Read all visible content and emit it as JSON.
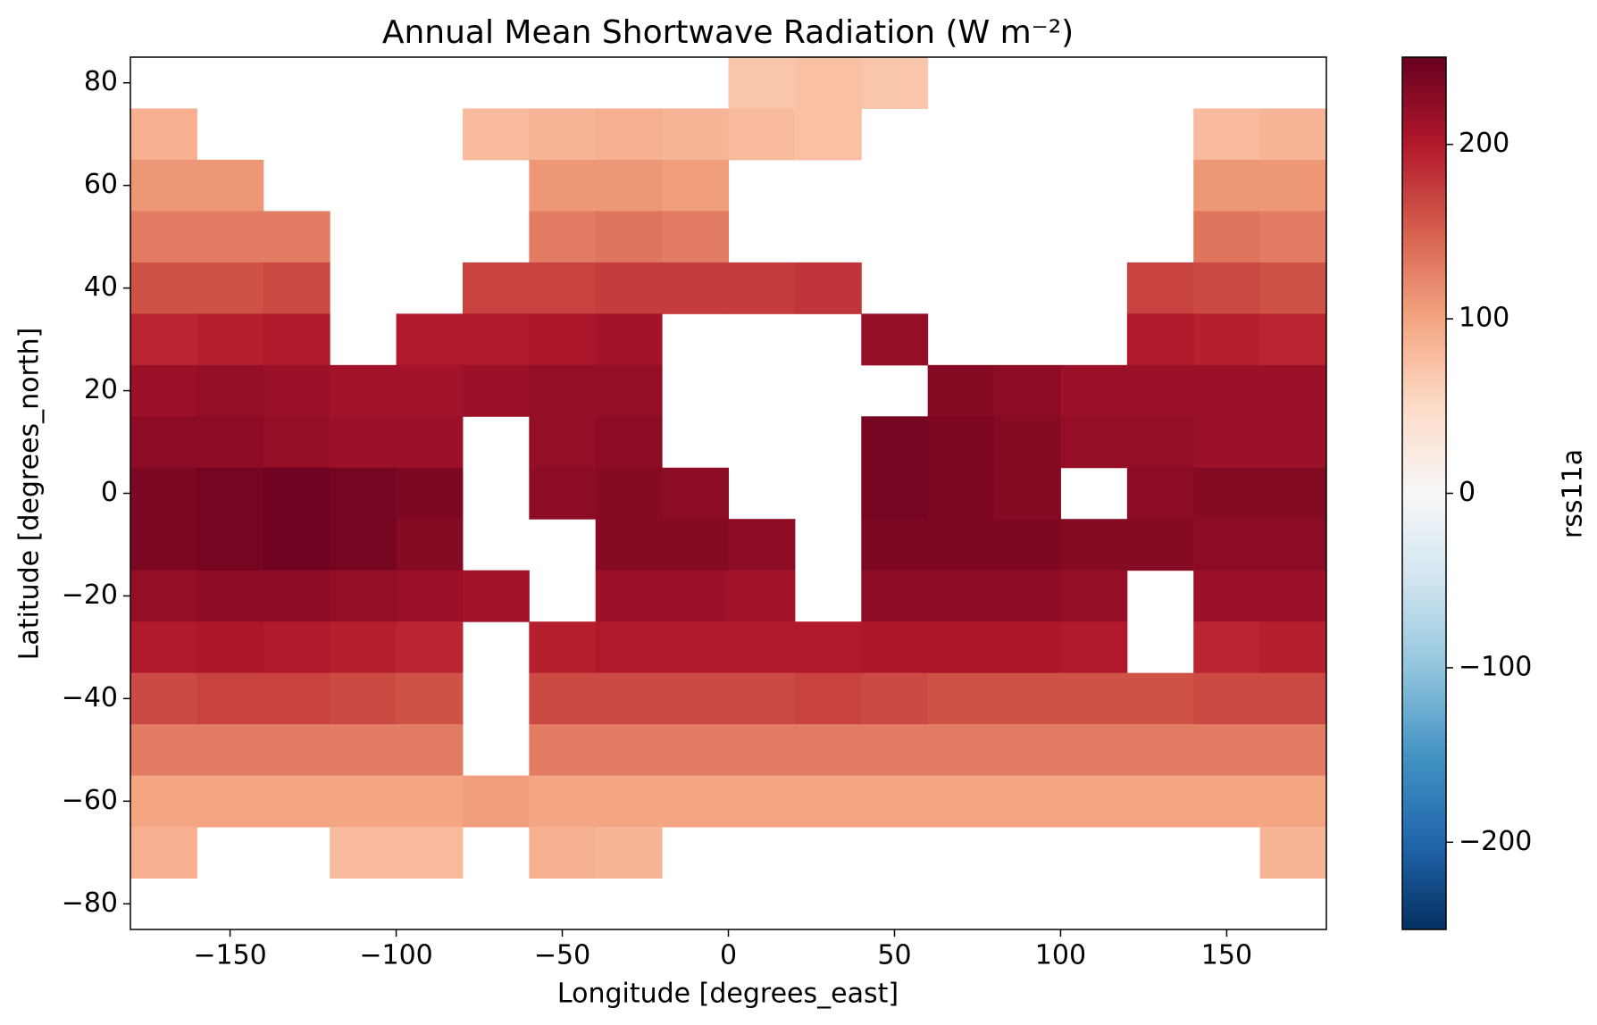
{
  "chart_data": {
    "type": "heatmap",
    "title": "Annual Mean Shortwave Radiation (W m⁻²)",
    "xlabel": "Longitude [degrees_east]",
    "ylabel": "Latitude [degrees_north]",
    "colorbar_label": "rss11a",
    "colormap": "RdBu_r",
    "x": [
      -170,
      -150,
      -130,
      -110,
      -90,
      -70,
      -50,
      -30,
      -10,
      10,
      30,
      50,
      70,
      90,
      110,
      130,
      150,
      170
    ],
    "y": [
      80,
      70,
      60,
      50,
      40,
      30,
      20,
      10,
      0,
      -10,
      -20,
      -30,
      -40,
      -50,
      -60,
      -70
    ],
    "values": [
      [
        null,
        null,
        null,
        null,
        null,
        null,
        null,
        null,
        null,
        70,
        75,
        70,
        null,
        null,
        null,
        null,
        null,
        null
      ],
      [
        90,
        null,
        null,
        null,
        null,
        80,
        85,
        90,
        85,
        80,
        75,
        null,
        null,
        null,
        null,
        null,
        80,
        85
      ],
      [
        110,
        110,
        null,
        null,
        null,
        null,
        110,
        110,
        105,
        null,
        null,
        null,
        null,
        null,
        null,
        null,
        110,
        110
      ],
      [
        130,
        130,
        130,
        null,
        null,
        null,
        130,
        135,
        130,
        null,
        null,
        null,
        null,
        null,
        null,
        null,
        135,
        130
      ],
      [
        160,
        160,
        165,
        null,
        null,
        170,
        170,
        175,
        175,
        175,
        180,
        null,
        null,
        null,
        null,
        170,
        165,
        160
      ],
      [
        190,
        195,
        200,
        null,
        200,
        200,
        205,
        210,
        null,
        null,
        null,
        220,
        null,
        null,
        null,
        200,
        195,
        190
      ],
      [
        215,
        220,
        215,
        210,
        210,
        215,
        220,
        220,
        null,
        null,
        null,
        null,
        230,
        225,
        215,
        215,
        215,
        215
      ],
      [
        225,
        225,
        220,
        215,
        215,
        null,
        220,
        225,
        null,
        null,
        null,
        240,
        235,
        230,
        220,
        220,
        215,
        215
      ],
      [
        235,
        240,
        245,
        240,
        235,
        null,
        225,
        230,
        225,
        null,
        null,
        240,
        235,
        230,
        null,
        225,
        230,
        230
      ],
      [
        235,
        240,
        245,
        240,
        230,
        null,
        null,
        230,
        230,
        225,
        null,
        235,
        235,
        235,
        230,
        230,
        225,
        225
      ],
      [
        220,
        225,
        225,
        220,
        215,
        210,
        null,
        215,
        215,
        210,
        null,
        225,
        225,
        225,
        220,
        null,
        215,
        215
      ],
      [
        200,
        205,
        200,
        195,
        190,
        null,
        195,
        200,
        200,
        200,
        200,
        205,
        205,
        205,
        200,
        null,
        190,
        195
      ],
      [
        165,
        170,
        170,
        165,
        160,
        null,
        165,
        165,
        165,
        165,
        170,
        165,
        160,
        160,
        160,
        160,
        165,
        165
      ],
      [
        130,
        130,
        130,
        130,
        130,
        null,
        130,
        130,
        130,
        130,
        130,
        130,
        130,
        130,
        130,
        130,
        130,
        130
      ],
      [
        100,
        100,
        100,
        100,
        100,
        105,
        100,
        100,
        100,
        100,
        100,
        100,
        100,
        100,
        100,
        100,
        100,
        100
      ],
      [
        90,
        null,
        null,
        80,
        80,
        null,
        90,
        85,
        null,
        null,
        null,
        null,
        null,
        null,
        null,
        null,
        null,
        85
      ]
    ],
    "xlim": [
      -180,
      180
    ],
    "ylim": [
      -85,
      85
    ],
    "xticks": [
      {
        "value": -150,
        "label": "−150"
      },
      {
        "value": -100,
        "label": "−100"
      },
      {
        "value": -50,
        "label": "−50"
      },
      0,
      50,
      100,
      150
    ],
    "yticks": [
      {
        "value": -80,
        "label": "−80"
      },
      {
        "value": -60,
        "label": "−60"
      },
      {
        "value": -40,
        "label": "−40"
      },
      {
        "value": -20,
        "label": "−20"
      },
      0,
      20,
      40,
      60,
      80
    ],
    "clim": [
      -250,
      250
    ],
    "cticks": [
      {
        "value": -200,
        "label": "−200"
      },
      {
        "value": -100,
        "label": "−100"
      },
      0,
      100,
      200
    ]
  }
}
